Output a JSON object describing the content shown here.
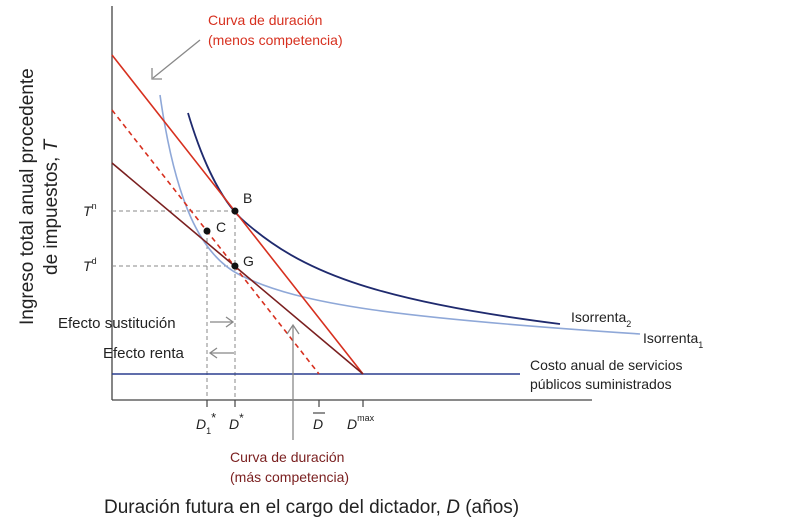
{
  "axes": {
    "y_title_line1": "Ingreso total anual procedente",
    "y_title_line2_main": "de impuestos, ",
    "y_title_line2_var": "T",
    "x_title_main": "Duración futura en el cargo del dictador, ",
    "x_title_var": "D",
    "x_title_unit": " (años)"
  },
  "labels": {
    "curve_less_line1": "Curva de duración",
    "curve_less_line2": "(menos competencia)",
    "curve_more_line1": "Curva de duración",
    "curve_more_line2": "(más competencia)",
    "iso2_main": "Isorrenta",
    "iso2_sub": "2",
    "iso1_main": "Isorrenta",
    "iso1_sub": "1",
    "cost_line1": "Costo anual de servicios",
    "cost_line2": "públicos suministrados",
    "substitution_effect": "Efecto sustitución",
    "income_effect": "Efecto renta"
  },
  "points": {
    "B": "B",
    "C": "C",
    "G": "G"
  },
  "ticks": {
    "y_Tn_main": "T",
    "y_Tn_sup": "n",
    "y_Td_main": "T",
    "y_Td_sup": "d",
    "x_D1_main": "D",
    "x_D1_sub": "1",
    "x_D1_sup": "*",
    "x_Dstar_main": "D",
    "x_Dstar_sup": "*",
    "x_Dbar": "D",
    "x_Dmax_main": "D",
    "x_Dmax_sup": "max"
  },
  "colors": {
    "red": "#d7301f",
    "dark_red": "#7a1f1f",
    "navy": "#1f2a6e",
    "light_blue": "#8fa8d8",
    "cost_line": "#2b3f8f",
    "grey": "#888888"
  }
}
